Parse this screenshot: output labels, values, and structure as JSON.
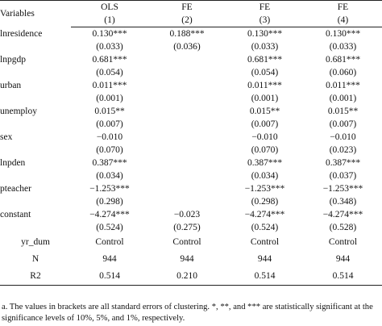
{
  "table": {
    "header": {
      "variables_label": "Variables",
      "models": [
        "OLS",
        "FE",
        "FE",
        "FE"
      ],
      "numbers": [
        "(1)",
        "(2)",
        "(3)",
        "(4)"
      ]
    },
    "rows": [
      {
        "var": "lnresidence",
        "coef": [
          "0.130***",
          "0.188***",
          "0.130***",
          "0.130***"
        ],
        "se": [
          "(0.033)",
          "(0.036)",
          "(0.033)",
          "(0.033)"
        ]
      },
      {
        "var": "lnpgdp",
        "coef": [
          "0.681***",
          "",
          "0.681***",
          "0.681***"
        ],
        "se": [
          "(0.054)",
          "",
          "(0.054)",
          "(0.060)"
        ]
      },
      {
        "var": "urban",
        "coef": [
          "0.011***",
          "",
          "0.011***",
          "0.011***"
        ],
        "se": [
          "(0.001)",
          "",
          "(0.001)",
          "(0.001)"
        ]
      },
      {
        "var": "unemploy",
        "coef": [
          "0.015**",
          "",
          "0.015**",
          "0.015**"
        ],
        "se": [
          "(0.007)",
          "",
          "(0.007)",
          "(0.007)"
        ]
      },
      {
        "var": "sex",
        "coef": [
          "−0.010",
          "",
          "−0.010",
          "−0.010"
        ],
        "se": [
          "(0.070)",
          "",
          "(0.070)",
          "(0.023)"
        ]
      },
      {
        "var": "lnpden",
        "coef": [
          "0.387***",
          "",
          "0.387***",
          "0.387***"
        ],
        "se": [
          "(0.034)",
          "",
          "(0.034)",
          "(0.037)"
        ]
      },
      {
        "var": "pteacher",
        "coef": [
          "−1.253***",
          "",
          "−1.253***",
          "−1.253***"
        ],
        "se": [
          "(0.298)",
          "",
          "(0.298)",
          "(0.348)"
        ]
      },
      {
        "var": "constant",
        "coef": [
          "−4.274***",
          "−0.023",
          "−4.274***",
          "−4.274***"
        ],
        "se": [
          "(0.524)",
          "(0.275)",
          "(0.524)",
          "(0.528)"
        ]
      }
    ],
    "yr_dum": {
      "label": "yr_dum",
      "values": [
        "Control",
        "Control",
        "Control",
        "Control"
      ]
    },
    "n": {
      "label": "N",
      "values": [
        "944",
        "944",
        "944",
        "944"
      ]
    },
    "r2": {
      "label": "R2",
      "values": [
        "0.514",
        "0.210",
        "0.514",
        "0.514"
      ]
    }
  },
  "note": "a. The values in brackets are all standard errors of clustering. *, **, and *** are statistically significant at the significance levels of 10%, 5%, and 1%, respectively."
}
